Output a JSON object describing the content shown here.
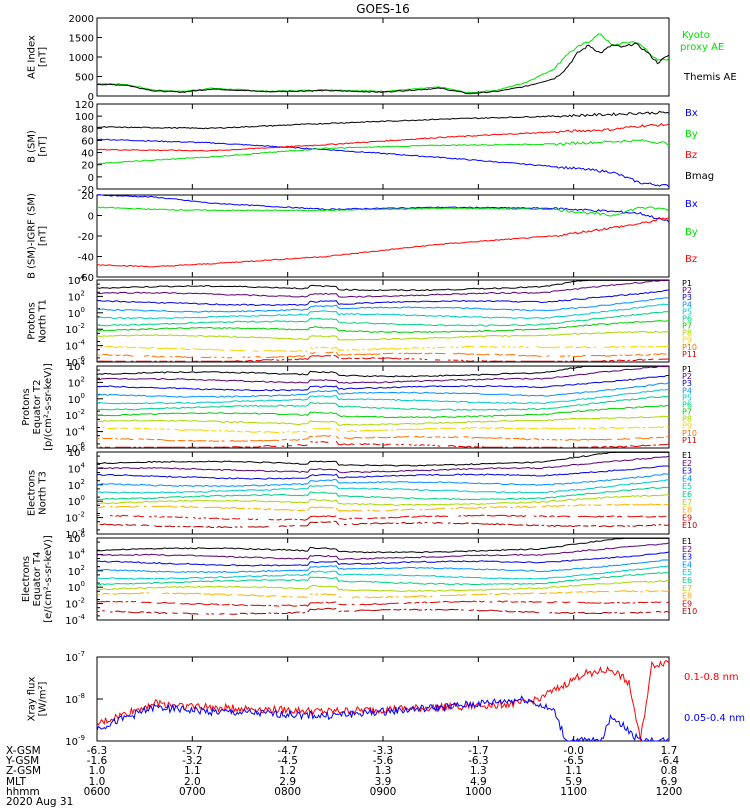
{
  "title": "GOES-16",
  "time_ticks": [
    "0600",
    "0700",
    "0800",
    "0900",
    "1000",
    "1100",
    "1200"
  ],
  "bottom_rows": [
    {
      "label": "X-GSM",
      "values": [
        "-6.3",
        "-5.7",
        "-4.7",
        "-3.3",
        "-1.7",
        "-0.0",
        "1.7"
      ]
    },
    {
      "label": "Y-GSM",
      "values": [
        "-1.6",
        "-3.2",
        "-4.5",
        "-5.6",
        "-6.3",
        "-6.5",
        "-6.4"
      ]
    },
    {
      "label": "Z-GSM",
      "values": [
        "1.0",
        "1.1",
        "1.2",
        "1.3",
        "1.3",
        "1.1",
        "0.8"
      ]
    },
    {
      "label": "MLT",
      "values": [
        "1.0",
        "2.0",
        "2.9",
        "3.9",
        "4.9",
        "5.9",
        "6.9"
      ]
    },
    {
      "label": "hhmm",
      "values": [
        "0600",
        "0700",
        "0800",
        "0900",
        "1000",
        "1100",
        "1200"
      ]
    }
  ],
  "date_label": "2020 Aug 31",
  "colors": {
    "black": "#000000",
    "green": "#00e000",
    "blue": "#0000ff",
    "red": "#ff0000"
  },
  "chart_data": [
    {
      "type": "line",
      "panel": "ae",
      "ylabel_lines": [
        "AE Index",
        "[nT]"
      ],
      "ylim": [
        0,
        2000
      ],
      "yticks": [
        "0",
        "500",
        "1000",
        "1500",
        "2000"
      ],
      "legend": [
        {
          "name": "Kyoto\nproxy AE",
          "color": "#00e000"
        },
        {
          "name": "Themis AE",
          "color": "#000000"
        }
      ],
      "series": [
        {
          "name": "Kyoto proxy AE",
          "color": "#00e000",
          "x": [
            0,
            0.05,
            0.1,
            0.15,
            0.2,
            0.3,
            0.4,
            0.5,
            0.6,
            0.65,
            0.7,
            0.75,
            0.8,
            0.82,
            0.84,
            0.86,
            0.88,
            0.9,
            0.92,
            0.94,
            0.96,
            0.98,
            1.0
          ],
          "y": [
            320,
            300,
            150,
            120,
            200,
            120,
            160,
            120,
            230,
            80,
            150,
            350,
            700,
            1050,
            1250,
            1400,
            1600,
            1300,
            1350,
            1400,
            1200,
            900,
            950
          ]
        },
        {
          "name": "Themis AE",
          "color": "#000000",
          "x": [
            0,
            0.05,
            0.1,
            0.15,
            0.2,
            0.3,
            0.4,
            0.5,
            0.6,
            0.65,
            0.7,
            0.75,
            0.8,
            0.82,
            0.84,
            0.86,
            0.88,
            0.9,
            0.92,
            0.94,
            0.96,
            0.98,
            1.0
          ],
          "y": [
            300,
            280,
            130,
            100,
            180,
            110,
            140,
            100,
            200,
            60,
            120,
            250,
            450,
            700,
            1100,
            1300,
            1100,
            1300,
            1250,
            1350,
            1150,
            850,
            1050
          ]
        }
      ]
    },
    {
      "type": "line",
      "panel": "b_sm",
      "ylabel_lines": [
        "B (SM)",
        "[nT]"
      ],
      "ylim": [
        -20,
        120
      ],
      "yticks": [
        "-20",
        "0",
        "20",
        "40",
        "60",
        "80",
        "100",
        "120"
      ],
      "legend": [
        {
          "name": "Bx",
          "color": "#0000ff"
        },
        {
          "name": "By",
          "color": "#00e000"
        },
        {
          "name": "Bz",
          "color": "#ff0000"
        },
        {
          "name": "Bmag",
          "color": "#000000"
        }
      ],
      "series": [
        {
          "name": "Bx",
          "color": "#0000ff",
          "x": [
            0,
            0.2,
            0.4,
            0.6,
            0.8,
            0.9,
            0.95,
            1.0
          ],
          "y": [
            62,
            56,
            45,
            32,
            17,
            8,
            -10,
            -15
          ]
        },
        {
          "name": "By",
          "color": "#00e000",
          "x": [
            0,
            0.2,
            0.4,
            0.6,
            0.8,
            0.9,
            0.95,
            1.0
          ],
          "y": [
            22,
            33,
            47,
            52,
            54,
            58,
            60,
            55
          ]
        },
        {
          "name": "Bz",
          "color": "#ff0000",
          "x": [
            0,
            0.2,
            0.4,
            0.6,
            0.8,
            0.9,
            0.95,
            1.0
          ],
          "y": [
            45,
            43,
            53,
            65,
            74,
            78,
            84,
            86
          ]
        },
        {
          "name": "Bmag",
          "color": "#000000",
          "x": [
            0,
            0.2,
            0.4,
            0.6,
            0.8,
            0.9,
            0.95,
            1.0
          ],
          "y": [
            82,
            80,
            88,
            95,
            100,
            103,
            105,
            106
          ]
        }
      ]
    },
    {
      "type": "line",
      "panel": "b_igrf",
      "ylabel_lines": [
        "B (SM)-IGRF (SM)",
        "[nT]"
      ],
      "ylim": [
        -60,
        20
      ],
      "yticks": [
        "-60",
        "-40",
        "-20",
        "0",
        "20"
      ],
      "legend": [
        {
          "name": "Bx",
          "color": "#0000ff"
        },
        {
          "name": "By",
          "color": "#00e000"
        },
        {
          "name": "Bz",
          "color": "#ff0000"
        }
      ],
      "series": [
        {
          "name": "Bx",
          "color": "#0000ff",
          "x": [
            0,
            0.1,
            0.2,
            0.4,
            0.6,
            0.8,
            0.9,
            0.95,
            1.0
          ],
          "y": [
            20,
            18,
            12,
            6,
            8,
            7,
            4,
            2,
            -6
          ]
        },
        {
          "name": "By",
          "color": "#00e000",
          "x": [
            0,
            0.1,
            0.2,
            0.4,
            0.6,
            0.8,
            0.9,
            0.95,
            1.0
          ],
          "y": [
            8,
            6,
            5,
            5,
            7,
            6,
            0,
            8,
            6
          ]
        },
        {
          "name": "Bz",
          "color": "#ff0000",
          "x": [
            0,
            0.1,
            0.2,
            0.4,
            0.6,
            0.8,
            0.9,
            0.95,
            1.0
          ],
          "y": [
            -48,
            -50,
            -47,
            -40,
            -28,
            -20,
            -12,
            -8,
            -2
          ]
        }
      ]
    },
    {
      "type": "line",
      "panel": "protons_north",
      "log": true,
      "ylabel_lines": [
        "Protons",
        "North T1"
      ],
      "ylim_exp": [
        -6,
        4
      ],
      "yticks_exp": [
        -6,
        -4,
        -2,
        0,
        2,
        4
      ],
      "channels": [
        "P1",
        "P2",
        "P3",
        "P4",
        "P5",
        "P6",
        "P7",
        "P8",
        "P9",
        "P10",
        "P11"
      ],
      "channel_colors": [
        "#000000",
        "#5a0078",
        "#0000dd",
        "#0090ff",
        "#00c8c8",
        "#00d080",
        "#00d000",
        "#a8d800",
        "#ffd000",
        "#ff7000",
        "#e00000"
      ],
      "levels": [
        3.0,
        2.2,
        1.2,
        0.4,
        -0.4,
        -1.3,
        -2.1,
        -3.0,
        -4.4,
        -5.2,
        -5.8
      ]
    },
    {
      "type": "line",
      "panel": "protons_equator",
      "log": true,
      "ylabel_lines": [
        "Protons",
        "Equator T2",
        "[p/(cm²-s-sr-keV)]"
      ],
      "ylim_exp": [
        -6,
        4
      ],
      "yticks_exp": [
        -6,
        -4,
        -2,
        0,
        2,
        4
      ],
      "channels": [
        "P1",
        "P2",
        "P3",
        "P4",
        "P5",
        "P6",
        "P7",
        "P8",
        "P9",
        "P10",
        "P11"
      ],
      "channel_colors": [
        "#000000",
        "#5a0078",
        "#0000dd",
        "#0090ff",
        "#00c8c8",
        "#00d080",
        "#00d000",
        "#a8d800",
        "#ffd000",
        "#ff7000",
        "#e00000"
      ],
      "levels": [
        3.0,
        2.2,
        1.3,
        0.5,
        -0.3,
        -1.1,
        -2.0,
        -2.9,
        -3.8,
        -4.9,
        -5.8
      ]
    },
    {
      "type": "line",
      "panel": "electrons_north",
      "log": true,
      "ylabel_lines": [
        "Electrons",
        "North T3"
      ],
      "ylim_exp": [
        -4,
        6
      ],
      "yticks_exp": [
        -4,
        -2,
        0,
        2,
        4,
        6
      ],
      "channels": [
        "E1",
        "E2",
        "E3",
        "E4",
        "E5",
        "E6",
        "E7",
        "E8",
        "E9",
        "E10"
      ],
      "channel_colors": [
        "#000000",
        "#5a0078",
        "#0000dd",
        "#0090ff",
        "#00c8c8",
        "#00d080",
        "#a8d800",
        "#ffb000",
        "#e00000",
        "#b00000"
      ],
      "levels": [
        4.6,
        3.8,
        3.0,
        2.1,
        1.3,
        0.5,
        -0.2,
        -0.9,
        -2.0,
        -2.9
      ]
    },
    {
      "type": "line",
      "panel": "electrons_equator",
      "log": true,
      "ylabel_lines": [
        "Electrons",
        "Equator T4",
        "[e/(cm²-s-sr-keV)]"
      ],
      "ylim_exp": [
        -4,
        6
      ],
      "yticks_exp": [
        -4,
        -2,
        0,
        2,
        4,
        6
      ],
      "channels": [
        "E1",
        "E2",
        "E3",
        "E4",
        "E5",
        "E6",
        "E7",
        "E8",
        "E9",
        "E10"
      ],
      "channel_colors": [
        "#000000",
        "#5a0078",
        "#0000dd",
        "#0090ff",
        "#00c8c8",
        "#00d080",
        "#a8d800",
        "#ffb000",
        "#e00000",
        "#b00000"
      ],
      "levels": [
        4.5,
        3.7,
        2.9,
        2.1,
        1.3,
        0.6,
        -0.2,
        -1.0,
        -2.0,
        -3.0
      ]
    },
    {
      "type": "line",
      "panel": "xray",
      "log": true,
      "ylabel_lines": [
        "Xray flux",
        "[W/m²]"
      ],
      "ylim_exp": [
        -9,
        -7
      ],
      "yticks_exp": [
        -9,
        -8,
        -7
      ],
      "legend": [
        {
          "name": "0.1-0.8 nm",
          "color": "#ff0000"
        },
        {
          "name": "0.05-0.4 nm",
          "color": "#0000ff"
        }
      ],
      "series": [
        {
          "name": "0.1-0.8 nm",
          "color": "#ff0000",
          "x": [
            0,
            0.1,
            0.2,
            0.4,
            0.6,
            0.75,
            0.8,
            0.85,
            0.9,
            0.93,
            0.95,
            0.97,
            1.0
          ],
          "y": [
            -8.6,
            -8.1,
            -8.2,
            -8.3,
            -8.2,
            -8.1,
            -7.8,
            -7.4,
            -7.3,
            -7.6,
            -9.0,
            -7.2,
            -7.1
          ]
        },
        {
          "name": "0.05-0.4 nm",
          "color": "#0000ff",
          "x": [
            0,
            0.1,
            0.2,
            0.4,
            0.6,
            0.75,
            0.8,
            0.82,
            0.85,
            0.88,
            0.9,
            0.95,
            1.0
          ],
          "y": [
            -8.7,
            -8.2,
            -8.3,
            -8.4,
            -8.2,
            -8.0,
            -8.3,
            -9.0,
            -9.0,
            -9.0,
            -8.4,
            -9.0,
            -9.0
          ]
        }
      ]
    }
  ]
}
